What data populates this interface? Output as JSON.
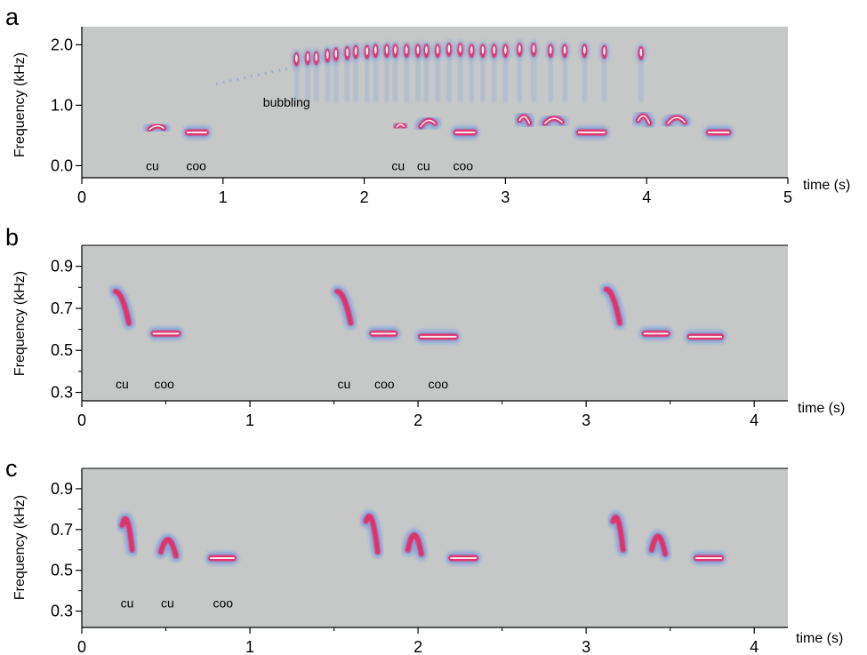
{
  "chart_data": [
    {
      "type": "spectrogram",
      "panel_label": "a",
      "xlabel": "time (s)",
      "ylabel": "Frequency (kHz)",
      "xlim": [
        0,
        5
      ],
      "ylim": [
        -0.2,
        2.3
      ],
      "xticks": [
        0,
        1,
        2,
        3,
        4,
        5
      ],
      "yticks": [
        0.0,
        1.0,
        2.0
      ],
      "xticklabels": [
        "0",
        "1",
        "2",
        "3",
        "4",
        "5"
      ],
      "yticklabels": [
        "0.0",
        "1.0",
        "2.0"
      ],
      "annotations": [
        {
          "text": "cu",
          "x": 0.5,
          "y": 0.0
        },
        {
          "text": "coo",
          "x": 0.81,
          "y": 0.0
        },
        {
          "text": "bubbling",
          "x": 1.45,
          "y": 1.05
        },
        {
          "text": "cu",
          "x": 2.24,
          "y": 0.0
        },
        {
          "text": "cu",
          "x": 2.42,
          "y": 0.0
        },
        {
          "text": "coo",
          "x": 2.7,
          "y": 0.0
        }
      ],
      "calls": [
        {
          "kind": "cu",
          "t0": 0.48,
          "t1": 0.58,
          "f_start": 0.6,
          "f_peak": 0.68,
          "f_end": 0.62
        },
        {
          "kind": "coo",
          "t0": 0.73,
          "t1": 0.9,
          "f": 0.55
        },
        {
          "kind": "cu",
          "t0": 2.23,
          "t1": 2.28,
          "f_start": 0.64,
          "f_peak": 0.7,
          "f_end": 0.65
        },
        {
          "kind": "cu",
          "t0": 2.4,
          "t1": 2.5,
          "f_start": 0.65,
          "f_peak": 0.78,
          "f_end": 0.7
        },
        {
          "kind": "coo",
          "t0": 2.63,
          "t1": 2.8,
          "f": 0.55
        },
        {
          "kind": "cu",
          "t0": 3.1,
          "t1": 3.17,
          "f_start": 0.75,
          "f_peak": 0.86,
          "f_end": 0.7
        },
        {
          "kind": "cu",
          "t0": 3.28,
          "t1": 3.4,
          "f_start": 0.7,
          "f_peak": 0.82,
          "f_end": 0.72
        },
        {
          "kind": "coo",
          "t0": 3.5,
          "t1": 3.72,
          "f": 0.55
        },
        {
          "kind": "cu",
          "t0": 3.94,
          "t1": 4.02,
          "f_start": 0.75,
          "f_peak": 0.88,
          "f_end": 0.7
        },
        {
          "kind": "cu",
          "t0": 4.15,
          "t1": 4.27,
          "f_start": 0.7,
          "f_peak": 0.84,
          "f_end": 0.72
        },
        {
          "kind": "coo",
          "t0": 4.42,
          "t1": 4.6,
          "f": 0.55
        }
      ],
      "bubbling_onset": {
        "t0": 0.95,
        "t1": 1.48,
        "f_start": 1.35,
        "f_end": 1.62
      },
      "bubbling_pulses": {
        "t": [
          1.52,
          1.6,
          1.66,
          1.74,
          1.8,
          1.88,
          1.94,
          2.02,
          2.08,
          2.16,
          2.22,
          2.3,
          2.38,
          2.44,
          2.52,
          2.6,
          2.68,
          2.76,
          2.84,
          2.92,
          3.0,
          3.1,
          3.2,
          3.32,
          3.42,
          3.56,
          3.7,
          3.96
        ],
        "f": [
          1.76,
          1.78,
          1.78,
          1.82,
          1.84,
          1.86,
          1.88,
          1.88,
          1.9,
          1.9,
          1.9,
          1.9,
          1.9,
          1.9,
          1.9,
          1.92,
          1.92,
          1.9,
          1.9,
          1.9,
          1.9,
          1.92,
          1.92,
          1.9,
          1.9,
          1.9,
          1.88,
          1.86
        ]
      }
    },
    {
      "type": "spectrogram",
      "panel_label": "b",
      "xlabel": "time (s)",
      "ylabel": "Frequency (kHz)",
      "xlim": [
        0,
        4.2
      ],
      "ylim": [
        0.26,
        1.0
      ],
      "xticks": [
        0,
        1,
        2,
        3,
        4
      ],
      "xticklabels": [
        "0",
        "1",
        "2",
        "3",
        "4"
      ],
      "minor_xticks": [
        0.5,
        1.5,
        2.5,
        3.5
      ],
      "yticks": [
        0.3,
        0.5,
        0.7,
        0.9
      ],
      "yticklabels": [
        "0.3",
        "0.5",
        "0.7",
        "0.9"
      ],
      "minor_yticks": [
        0.4,
        0.6,
        0.8
      ],
      "annotations": [
        {
          "text": "cu",
          "x": 0.24,
          "y": 0.34
        },
        {
          "text": "coo",
          "x": 0.49,
          "y": 0.34
        },
        {
          "text": "cu",
          "x": 1.56,
          "y": 0.34
        },
        {
          "text": "coo",
          "x": 1.8,
          "y": 0.34
        },
        {
          "text": "coo",
          "x": 2.12,
          "y": 0.34
        }
      ],
      "calls": [
        {
          "kind": "cu",
          "t0": 0.2,
          "t1": 0.28,
          "f_start": 0.78,
          "f_peak": 0.78,
          "f_end": 0.63
        },
        {
          "kind": "coo",
          "t0": 0.41,
          "t1": 0.59,
          "f": 0.58
        },
        {
          "kind": "cu",
          "t0": 1.52,
          "t1": 1.6,
          "f_start": 0.78,
          "f_peak": 0.78,
          "f_end": 0.63
        },
        {
          "kind": "coo",
          "t0": 1.71,
          "t1": 1.88,
          "f": 0.58
        },
        {
          "kind": "coo",
          "t0": 2.0,
          "t1": 2.24,
          "f": 0.565
        },
        {
          "kind": "cu",
          "t0": 3.12,
          "t1": 3.2,
          "f_start": 0.79,
          "f_peak": 0.79,
          "f_end": 0.63
        },
        {
          "kind": "coo",
          "t0": 3.33,
          "t1": 3.5,
          "f": 0.58
        },
        {
          "kind": "coo",
          "t0": 3.6,
          "t1": 3.82,
          "f": 0.565
        }
      ]
    },
    {
      "type": "spectrogram",
      "panel_label": "c",
      "xlabel": "time (s)",
      "ylabel": "Frequency (kHz)",
      "xlim": [
        0,
        4.2
      ],
      "ylim": [
        0.22,
        1.0
      ],
      "xticks": [
        0,
        1,
        2,
        3,
        4
      ],
      "xticklabels": [
        "0",
        "1",
        "2",
        "3",
        "4"
      ],
      "minor_xticks": [
        0.5,
        1.5,
        2.5,
        3.5
      ],
      "yticks": [
        0.3,
        0.5,
        0.7,
        0.9
      ],
      "yticklabels": [
        "0.3",
        "0.5",
        "0.7",
        "0.9"
      ],
      "minor_yticks": [
        0.4,
        0.6,
        0.8
      ],
      "annotations": [
        {
          "text": "cu",
          "x": 0.27,
          "y": 0.34
        },
        {
          "text": "cu",
          "x": 0.51,
          "y": 0.34
        },
        {
          "text": "coo",
          "x": 0.84,
          "y": 0.34
        }
      ],
      "calls": [
        {
          "kind": "cu",
          "t0": 0.24,
          "t1": 0.3,
          "f_start": 0.72,
          "f_peak": 0.8,
          "f_end": 0.6
        },
        {
          "kind": "cu",
          "t0": 0.47,
          "t1": 0.56,
          "f_start": 0.59,
          "f_peak": 0.69,
          "f_end": 0.57
        },
        {
          "kind": "coo",
          "t0": 0.75,
          "t1": 0.92,
          "f": 0.56
        },
        {
          "kind": "cu",
          "t0": 1.69,
          "t1": 1.76,
          "f_start": 0.74,
          "f_peak": 0.81,
          "f_end": 0.59
        },
        {
          "kind": "cu",
          "t0": 1.94,
          "t1": 2.02,
          "f_start": 0.6,
          "f_peak": 0.72,
          "f_end": 0.58
        },
        {
          "kind": "coo",
          "t0": 2.18,
          "t1": 2.36,
          "f": 0.56
        },
        {
          "kind": "cu",
          "t0": 3.16,
          "t1": 3.22,
          "f_start": 0.74,
          "f_peak": 0.8,
          "f_end": 0.6
        },
        {
          "kind": "cu",
          "t0": 3.39,
          "t1": 3.47,
          "f_start": 0.6,
          "f_peak": 0.71,
          "f_end": 0.58
        },
        {
          "kind": "coo",
          "t0": 3.64,
          "t1": 3.82,
          "f": 0.56
        }
      ]
    }
  ],
  "colors": {
    "background": "#c6c8c8",
    "halo": "#7fa0dc",
    "core": "#e0306a",
    "ridge": "#ffe9f2",
    "text": "#000000"
  }
}
